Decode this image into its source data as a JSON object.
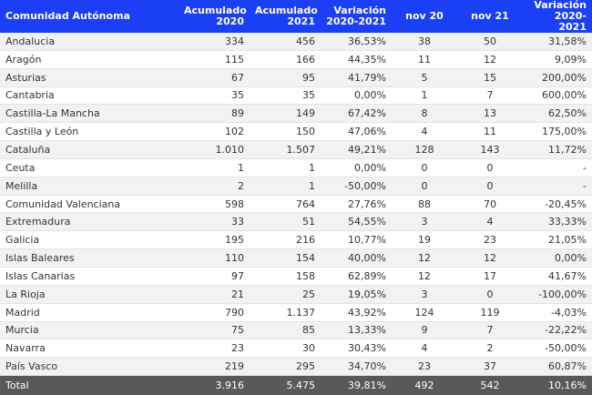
{
  "headers": {
    "region": "Comunidad Autónoma",
    "acum2020": [
      "Acumulado",
      "2020"
    ],
    "acum2021": [
      "Acumulado",
      "2021"
    ],
    "var_acum": [
      "Variación",
      "2020-2021"
    ],
    "nov20": "nov 20",
    "nov21": "nov 21",
    "var_nov": [
      "Variación",
      "2020-2021"
    ]
  },
  "rows": [
    [
      "Andalucia",
      "334",
      "456",
      "36,53%",
      "38",
      "50",
      "31,58%"
    ],
    [
      "Aragón",
      "115",
      "166",
      "44,35%",
      "11",
      "12",
      "9,09%"
    ],
    [
      "Asturias",
      "67",
      "95",
      "41,79%",
      "5",
      "15",
      "200,00%"
    ],
    [
      "Cantabria",
      "35",
      "35",
      "0,00%",
      "1",
      "7",
      "600,00%"
    ],
    [
      "Castilla-La Mancha",
      "89",
      "149",
      "67,42%",
      "8",
      "13",
      "62,50%"
    ],
    [
      "Castilla y León",
      "102",
      "150",
      "47,06%",
      "4",
      "11",
      "175,00%"
    ],
    [
      "Cataluña",
      "1.010",
      "1.507",
      "49,21%",
      "128",
      "143",
      "11,72%"
    ],
    [
      "Ceuta",
      "1",
      "1",
      "0,00%",
      "0",
      "0",
      "-"
    ],
    [
      "Melilla",
      "2",
      "1",
      "-50,00%",
      "0",
      "0",
      "-"
    ],
    [
      "Comunidad Valenciana",
      "598",
      "764",
      "27,76%",
      "88",
      "70",
      "-20,45%"
    ],
    [
      "Extremadura",
      "33",
      "51",
      "54,55%",
      "3",
      "4",
      "33,33%"
    ],
    [
      "Galicia",
      "195",
      "216",
      "10,77%",
      "19",
      "23",
      "21,05%"
    ],
    [
      "Islas Baleares",
      "110",
      "154",
      "40,00%",
      "12",
      "12",
      "0,00%"
    ],
    [
      "Islas Canarias",
      "97",
      "158",
      "62,89%",
      "12",
      "17",
      "41,67%"
    ],
    [
      "La Rioja",
      "21",
      "25",
      "19,05%",
      "3",
      "0",
      "-100,00%"
    ],
    [
      "Madrid",
      "790",
      "1.137",
      "43,92%",
      "124",
      "119",
      "-4,03%"
    ],
    [
      "Murcia",
      "75",
      "85",
      "13,33%",
      "9",
      "7",
      "-22,22%"
    ],
    [
      "Navarra",
      "23",
      "30",
      "30,43%",
      "4",
      "2",
      "-50,00%"
    ],
    [
      "País Vasco",
      "219",
      "295",
      "34,70%",
      "23",
      "37",
      "60,87%"
    ]
  ],
  "total": [
    "Total",
    "3.916",
    "5.475",
    "39,81%",
    "492",
    "542",
    "10,16%"
  ],
  "colors": {
    "header_bg": "#1a3ff5",
    "total_bg": "#595959",
    "stripe": "#f2f2f2"
  }
}
